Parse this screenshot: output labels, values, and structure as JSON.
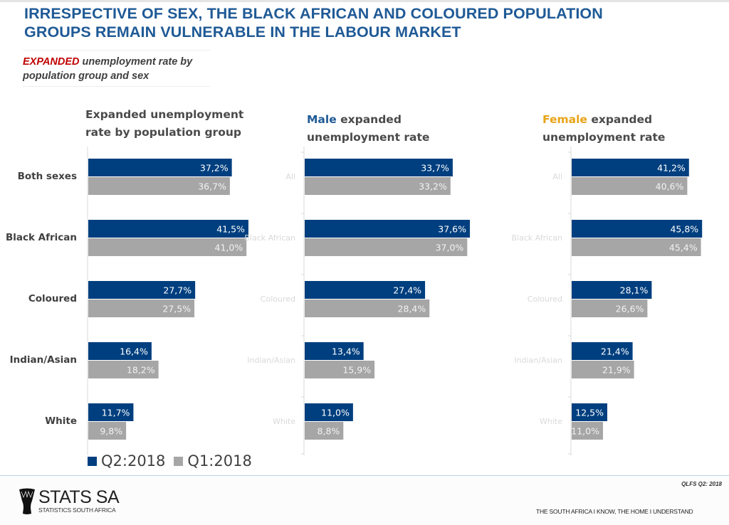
{
  "header": {
    "title_line1": "IRRESPECTIVE OF SEX, THE BLACK AFRICAN AND COLOURED POPULATION",
    "title_line2": "GROUPS REMAIN VULNERABLE IN THE LABOUR MARKET",
    "subtitle_highlight": "EXPANDED",
    "subtitle_rest_line1": " unemployment rate by",
    "subtitle_line2": "population group and sex"
  },
  "colors": {
    "q2": "#003f7f",
    "q1": "#a6a6a6",
    "title": "#1f5a96",
    "highlight": "#c00000",
    "female": "#e8a317"
  },
  "chart_data": [
    {
      "type": "bar",
      "orientation": "horizontal",
      "title": "Expanded unemployment rate by population group",
      "title_line1": "Expanded unemployment",
      "title_line2": "rate by population group",
      "categories": [
        "Both sexes",
        "Black African",
        "Coloured",
        "Indian/Asian",
        "White"
      ],
      "series": [
        {
          "name": "Q2:2018",
          "values": [
            37.2,
            41.5,
            27.7,
            16.4,
            11.7
          ],
          "labels": [
            "37,2%",
            "41,5%",
            "27,7%",
            "16,4%",
            "11,7%"
          ]
        },
        {
          "name": "Q1:2018",
          "values": [
            36.7,
            41.0,
            27.5,
            18.2,
            9.8
          ],
          "labels": [
            "36,7%",
            "41,0%",
            "27,5%",
            "18,2%",
            "9,8%"
          ]
        }
      ],
      "xlabel": "",
      "ylabel": "",
      "grid": false
    },
    {
      "type": "bar",
      "orientation": "horizontal",
      "title": "Male expanded unemployment rate",
      "title_highlight": "Male",
      "title_line1_rest": " expanded",
      "title_line2": "unemployment rate",
      "categories": [
        "All",
        "Black African",
        "Coloured",
        "Indian/Asian",
        "White"
      ],
      "series": [
        {
          "name": "Q2:2018",
          "values": [
            33.7,
            37.6,
            27.4,
            13.4,
            11.0
          ],
          "labels": [
            "33,7%",
            "37,6%",
            "27,4%",
            "13,4%",
            "11,0%"
          ]
        },
        {
          "name": "Q1:2018",
          "values": [
            33.2,
            37.0,
            28.4,
            15.9,
            8.8
          ],
          "labels": [
            "33,2%",
            "37,0%",
            "28,4%",
            "15,9%",
            "8,8%"
          ]
        }
      ],
      "xlabel": "",
      "ylabel": "",
      "grid": false
    },
    {
      "type": "bar",
      "orientation": "horizontal",
      "title": "Female expanded unemployment rate",
      "title_highlight": "Female",
      "title_line1_rest": " expanded",
      "title_line2": "unemployment rate",
      "categories": [
        "All",
        "Black African",
        "Coloured",
        "Indian/Asian",
        "White"
      ],
      "series": [
        {
          "name": "Q2:2018",
          "values": [
            41.2,
            45.8,
            28.1,
            21.4,
            12.5
          ],
          "labels": [
            "41,2%",
            "45,8%",
            "28,1%",
            "21,4%",
            "12,5%"
          ]
        },
        {
          "name": "Q1:2018",
          "values": [
            40.6,
            45.4,
            26.6,
            21.9,
            11.0
          ],
          "labels": [
            "40,6%",
            "45,4%",
            "26,6%",
            "21,9%",
            "11,0%"
          ]
        }
      ],
      "xlabel": "",
      "ylabel": "",
      "grid": false
    }
  ],
  "legend": {
    "items": [
      {
        "label": "Q2:2018"
      },
      {
        "label": "Q1:2018"
      }
    ],
    "placement": "bottom-left"
  },
  "footer": {
    "logo_main": "STATS SA",
    "logo_sub": "STATISTICS SOUTH AFRICA",
    "source": "QLFS Q2: 2018",
    "tagline": "THE SOUTH AFRICA I KNOW, THE HOME I UNDERSTAND"
  }
}
